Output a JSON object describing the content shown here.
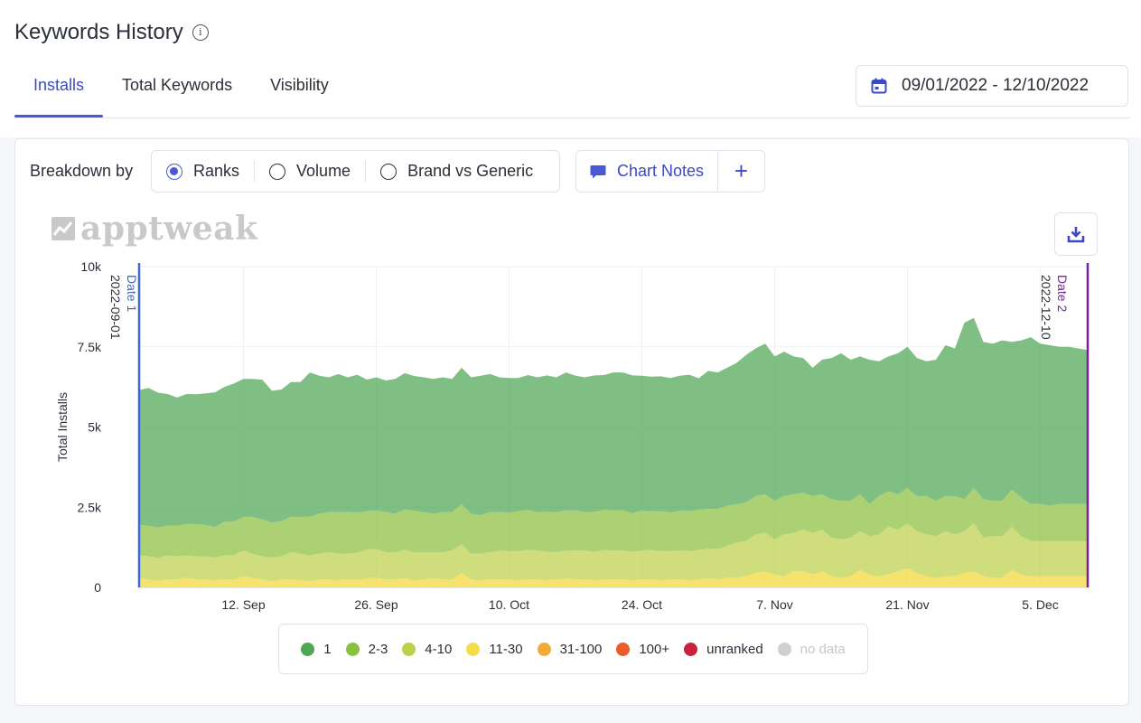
{
  "page_title": "Keywords History",
  "tabs": [
    {
      "label": "Installs",
      "active": true
    },
    {
      "label": "Total Keywords",
      "active": false
    },
    {
      "label": "Visibility",
      "active": false
    }
  ],
  "date_range": "09/01/2022 - 12/10/2022",
  "breakdown": {
    "label": "Breakdown by",
    "options": [
      {
        "label": "Ranks",
        "checked": true
      },
      {
        "label": "Volume",
        "checked": false
      },
      {
        "label": "Brand vs Generic",
        "checked": false
      }
    ]
  },
  "chart_notes": {
    "label": "Chart Notes",
    "add": "+"
  },
  "logo_text": "apptweak",
  "colors": {
    "accent": "#4a57d6",
    "date1": "#3b68d9",
    "date2": "#7a1fa0",
    "rank_1": "#4fa653",
    "rank_2_3": "#8bbf3f",
    "rank_4_10": "#bcd04a",
    "rank_11_30": "#f4dc4a",
    "rank_31_100": "#f2aa3a",
    "rank_100_plus": "#ea5c2a",
    "unranked": "#c8233e",
    "no_data": "#cfcfcf"
  },
  "chart_data": {
    "type": "area",
    "stacked": true,
    "ylabel": "Total Installs",
    "ylim": [
      0,
      10000
    ],
    "y_ticks": [
      "0",
      "2.5k",
      "5k",
      "7.5k",
      "10k"
    ],
    "x_ticks": [
      "12. Sep",
      "26. Sep",
      "10. Oct",
      "24. Oct",
      "7. Nov",
      "21. Nov",
      "5. Dec"
    ],
    "x_tick_dates": [
      "2022-09-12",
      "2022-09-26",
      "2022-10-10",
      "2022-10-24",
      "2022-11-07",
      "2022-11-21",
      "2022-12-05"
    ],
    "x_range": [
      "2022-09-01",
      "2022-12-10"
    ],
    "plot_bands": [
      {
        "label": "Date 1",
        "date": "2022-09-01"
      },
      {
        "label": "Date 2",
        "date": "2022-12-10"
      }
    ],
    "series": [
      {
        "name": "11-30",
        "values": [
          300,
          250,
          200,
          250,
          250,
          300,
          250,
          250,
          230,
          250,
          250,
          350,
          300,
          250,
          200,
          250,
          250,
          230,
          200,
          250,
          250,
          230,
          250,
          230,
          280,
          300,
          250,
          250,
          300,
          230,
          250,
          280,
          250,
          250,
          450,
          250,
          230,
          250,
          250,
          250,
          230,
          250,
          250,
          230,
          250,
          280,
          250,
          250,
          230,
          250,
          250,
          250,
          230,
          250,
          250,
          230,
          250,
          250,
          230,
          250,
          280,
          250,
          300,
          300,
          350,
          450,
          500,
          400,
          350,
          500,
          500,
          400,
          500,
          350,
          300,
          350,
          550,
          400,
          350,
          400,
          500,
          600,
          450,
          350,
          300,
          350,
          350,
          450,
          500,
          350,
          300,
          300,
          550,
          400,
          350,
          350,
          350,
          350,
          350,
          350,
          350
        ]
      },
      {
        "name": "4-10",
        "values": [
          700,
          720,
          720,
          750,
          720,
          700,
          720,
          720,
          700,
          750,
          760,
          800,
          750,
          720,
          730,
          720,
          850,
          820,
          800,
          800,
          850,
          820,
          800,
          850,
          900,
          900,
          850,
          850,
          880,
          860,
          850,
          820,
          850,
          900,
          900,
          800,
          820,
          850,
          900,
          880,
          900,
          920,
          900,
          880,
          850,
          870,
          900,
          900,
          880,
          920,
          900,
          900,
          880,
          900,
          920,
          900,
          880,
          900,
          900,
          920,
          920,
          950,
          1000,
          1100,
          1100,
          1200,
          1200,
          1100,
          1300,
          1200,
          1300,
          1300,
          1300,
          1200,
          1200,
          1200,
          1200,
          1200,
          1300,
          1500,
          1300,
          1400,
          1300,
          1300,
          1300,
          1400,
          1300,
          1300,
          1500,
          1200,
          1300,
          1300,
          1350,
          1200,
          1100,
          1100,
          1100,
          1100,
          1100,
          1100,
          1100
        ]
      },
      {
        "name": "2-3",
        "values": [
          950,
          950,
          950,
          930,
          950,
          980,
          1000,
          980,
          950,
          1050,
          1050,
          1050,
          1150,
          1150,
          1100,
          1100,
          1100,
          1150,
          1200,
          1250,
          1250,
          1300,
          1300,
          1250,
          1200,
          1200,
          1250,
          1200,
          1250,
          1300,
          1250,
          1200,
          1250,
          1200,
          1250,
          1250,
          1200,
          1250,
          1200,
          1200,
          1250,
          1250,
          1200,
          1250,
          1250,
          1250,
          1250,
          1200,
          1250,
          1250,
          1250,
          1250,
          1200,
          1250,
          1200,
          1250,
          1200,
          1250,
          1250,
          1250,
          1250,
          1250,
          1250,
          1200,
          1200,
          1200,
          1200,
          1200,
          1200,
          1200,
          1150,
          1150,
          1100,
          1200,
          1200,
          1150,
          1150,
          1000,
          1200,
          1100,
          1100,
          1100,
          1100,
          1200,
          1100,
          1100,
          1200,
          1000,
          1100,
          1200,
          1100,
          1100,
          1150,
          1200,
          1150,
          1150,
          1100,
          1150,
          1150,
          1150,
          1150
        ]
      },
      {
        "name": "1",
        "values": [
          4200,
          4300,
          4200,
          4100,
          4000,
          4050,
          4050,
          4100,
          4200,
          4200,
          4300,
          4300,
          4300,
          4350,
          4100,
          4100,
          4200,
          4200,
          4500,
          4300,
          4200,
          4300,
          4200,
          4300,
          4100,
          4150,
          4100,
          4200,
          4250,
          4200,
          4200,
          4200,
          4200,
          4150,
          4250,
          4250,
          4350,
          4300,
          4200,
          4200,
          4150,
          4200,
          4200,
          4250,
          4200,
          4300,
          4200,
          4200,
          4250,
          4200,
          4300,
          4300,
          4300,
          4200,
          4200,
          4200,
          4200,
          4200,
          4250,
          4100,
          4300,
          4250,
          4300,
          4400,
          4600,
          4600,
          4700,
          4500,
          4500,
          4300,
          4200,
          4000,
          4200,
          4400,
          4600,
          4400,
          4300,
          4500,
          4200,
          4200,
          4400,
          4400,
          4300,
          4200,
          4400,
          4700,
          4600,
          5500,
          5300,
          4900,
          4900,
          5000,
          4600,
          4900,
          5200,
          5000,
          5000,
          4900,
          4900,
          4850,
          4800
        ]
      },
      {
        "name": "31-100",
        "values": [
          30,
          30,
          30,
          30,
          30,
          30,
          30,
          30,
          30,
          30,
          30,
          30,
          30,
          30,
          30,
          30,
          30,
          30,
          30,
          30,
          30,
          30,
          30,
          30,
          30,
          30,
          30,
          30,
          30,
          30,
          30,
          30,
          30,
          30,
          30,
          30,
          30,
          30,
          30,
          30,
          30,
          30,
          30,
          30,
          30,
          30,
          30,
          30,
          30,
          30,
          30,
          30,
          30,
          30,
          30,
          30,
          30,
          30,
          30,
          30,
          30,
          30,
          30,
          30,
          30,
          30,
          30,
          30,
          30,
          30,
          30,
          30,
          30,
          30,
          30,
          30,
          30,
          30,
          30,
          30,
          30,
          30,
          30,
          30,
          30,
          30,
          30,
          30,
          30,
          30,
          30,
          30,
          30,
          30,
          30,
          30,
          30,
          30,
          30,
          30,
          30
        ]
      },
      {
        "name": "100+",
        "values": [
          10,
          10,
          10,
          10,
          10,
          10,
          10,
          10,
          10,
          10,
          10,
          10,
          10,
          10,
          10,
          10,
          10,
          10,
          10,
          10,
          10,
          10,
          10,
          10,
          10,
          10,
          10,
          10,
          10,
          10,
          10,
          10,
          10,
          10,
          10,
          10,
          10,
          10,
          10,
          10,
          10,
          10,
          10,
          10,
          10,
          10,
          10,
          10,
          10,
          10,
          10,
          10,
          10,
          10,
          10,
          10,
          10,
          10,
          10,
          10,
          10,
          10,
          10,
          10,
          10,
          10,
          10,
          10,
          10,
          10,
          10,
          10,
          10,
          10,
          10,
          10,
          10,
          10,
          10,
          10,
          10,
          10,
          10,
          10,
          10,
          10,
          10,
          10,
          10,
          10,
          10,
          10,
          10,
          10,
          10,
          10,
          10,
          10,
          10,
          10,
          10
        ]
      }
    ],
    "legend": [
      {
        "name": "1",
        "color": "#4fa653"
      },
      {
        "name": "2-3",
        "color": "#8bbf3f"
      },
      {
        "name": "4-10",
        "color": "#bcd04a"
      },
      {
        "name": "11-30",
        "color": "#f4dc4a"
      },
      {
        "name": "31-100",
        "color": "#f2aa3a"
      },
      {
        "name": "100+",
        "color": "#ea5c2a"
      },
      {
        "name": "unranked",
        "color": "#c8233e"
      },
      {
        "name": "no data",
        "color": "#cfcfcf",
        "muted": true
      }
    ],
    "legend_position": "bottom",
    "grid": true
  }
}
